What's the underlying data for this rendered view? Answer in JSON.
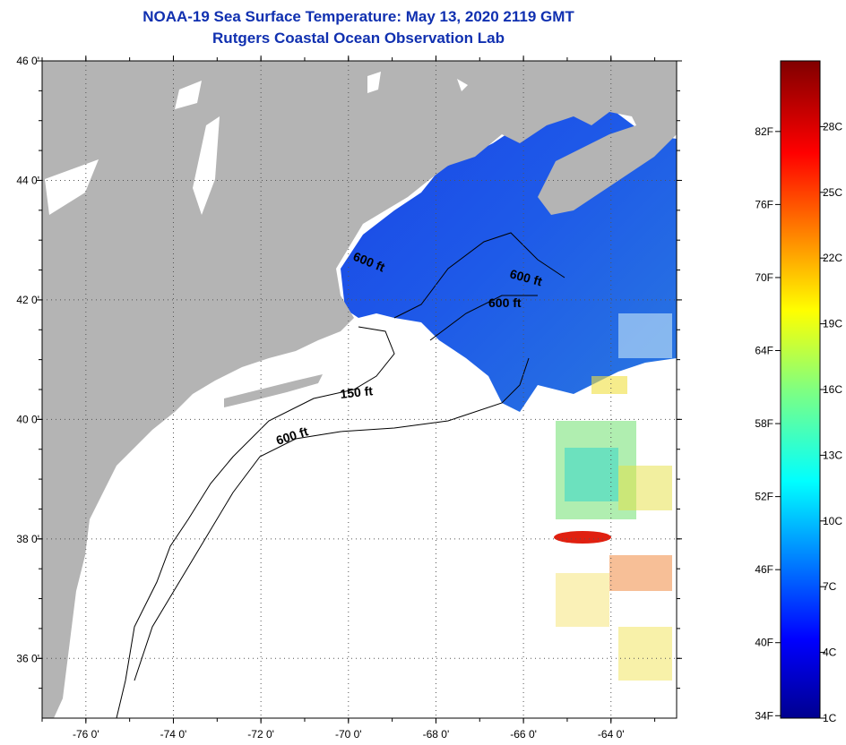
{
  "title": "NOAA-19 Sea Surface Temperature:  May 13, 2020 2119 GMT",
  "subtitle": "Rutgers Coastal Ocean Observation Lab",
  "map": {
    "lat_labels": [
      "46 0'",
      "44 0'",
      "42 0'",
      "40 0'",
      "38 0'",
      "36 0'"
    ],
    "lat_values": [
      46,
      44,
      42,
      40,
      38,
      36
    ],
    "lon_labels": [
      "-76 0'",
      "-74 0'",
      "-72 0'",
      "-70 0'",
      "-68 0'",
      "-66 0'",
      "-64 0'"
    ],
    "lon_values": [
      -76,
      -74,
      -72,
      -70,
      -68,
      -66,
      -64
    ],
    "lat_range": [
      35.0,
      46.0
    ],
    "lon_range": [
      -77.0,
      -62.5
    ],
    "contour_labels": [
      "600 ft",
      "600 ft",
      "600 ft",
      "150 ft",
      "600 ft"
    ],
    "colors": {
      "land": "#b4b4b4",
      "no_data": "#ffffff",
      "cold_water": "#1a40e8"
    }
  },
  "colorbar": {
    "fahrenheit_labels": [
      "82F",
      "76F",
      "70F",
      "64F",
      "58F",
      "52F",
      "46F",
      "40F",
      "34F"
    ],
    "fahrenheit_values": [
      82,
      76,
      70,
      64,
      58,
      52,
      46,
      40,
      34
    ],
    "celsius_labels": [
      "28C",
      "25C",
      "22C",
      "19C",
      "16C",
      "13C",
      "10C",
      "7C",
      "4C",
      "1C"
    ],
    "celsius_values": [
      28,
      25,
      22,
      19,
      16,
      13,
      10,
      7,
      4,
      1
    ],
    "range_c": [
      1,
      31
    ]
  }
}
